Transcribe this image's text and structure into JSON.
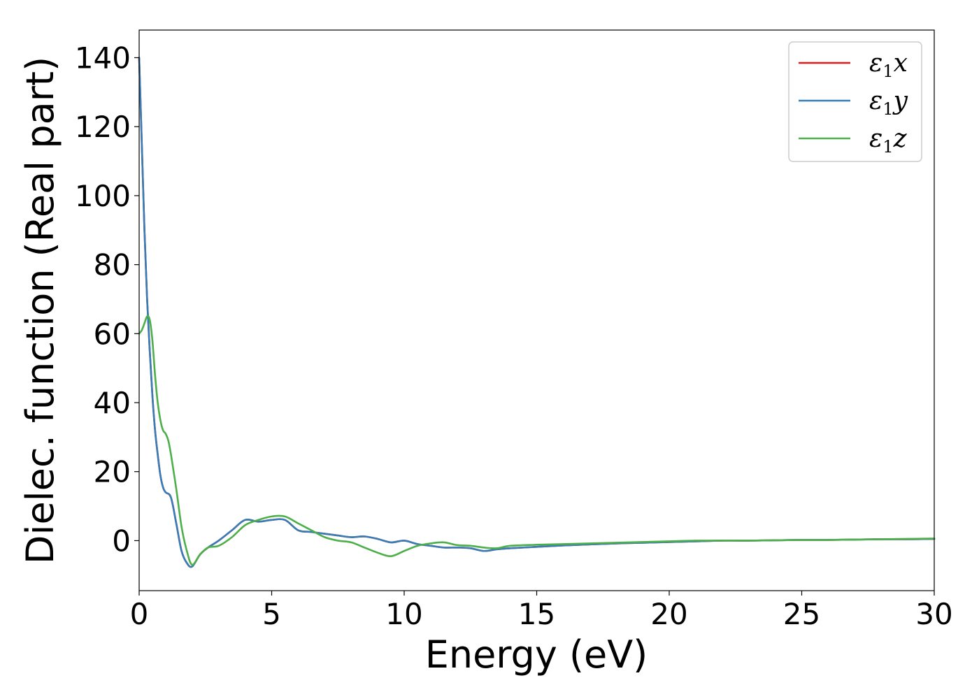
{
  "chart_data": {
    "type": "line",
    "xlabel": "Energy (eV)",
    "ylabel": "Dielec. function (Real part)",
    "xlim": [
      0,
      30
    ],
    "ylim": [
      -14.5,
      148
    ],
    "xticks": [
      "0",
      "5",
      "10",
      "15",
      "20",
      "25",
      "30"
    ],
    "yticks": [
      "0",
      "20",
      "40",
      "60",
      "80",
      "100",
      "120",
      "140"
    ],
    "grid": false,
    "legend_position": "top-right",
    "series": [
      {
        "name": "ε1x",
        "legend": {
          "base": "ε",
          "sub": "1",
          "suffix": "x"
        },
        "color": "#e41a1c",
        "x": [
          0,
          0.1,
          0.2,
          0.3,
          0.4,
          0.5,
          0.6,
          0.7,
          0.8,
          0.9,
          1.0,
          1.2,
          1.4,
          1.6,
          1.8,
          2.0,
          2.3,
          2.6,
          3.0,
          3.5,
          4.0,
          4.5,
          5.0,
          5.5,
          6.0,
          6.5,
          7.0,
          7.5,
          8.0,
          8.5,
          9.0,
          9.5,
          10.0,
          10.5,
          11.0,
          11.5,
          12.0,
          12.5,
          13.0,
          13.5,
          14.0,
          15.0,
          16.0,
          17.0,
          18.0,
          19.0,
          20.0,
          21.0,
          22.0,
          23.0,
          24.0,
          25.0,
          26.0,
          27.0,
          28.0,
          29.0,
          30.0
        ],
        "y": [
          140,
          115,
          90,
          70,
          55,
          42,
          32,
          25,
          19,
          15.5,
          14,
          12.5,
          5,
          -3,
          -6.5,
          -7.5,
          -4,
          -2,
          0,
          3,
          6,
          5.5,
          6,
          6,
          3,
          2.5,
          2,
          1.5,
          1,
          1.2,
          0.5,
          -0.5,
          0,
          -1,
          -1.5,
          -2,
          -2,
          -2.2,
          -3,
          -2.5,
          -2.2,
          -1.8,
          -1.4,
          -1.1,
          -0.8,
          -0.6,
          -0.4,
          -0.2,
          0,
          0,
          0.1,
          0.2,
          0.2,
          0.3,
          0.4,
          0.4,
          0.5
        ]
      },
      {
        "name": "ε1y",
        "legend": {
          "base": "ε",
          "sub": "1",
          "suffix": "y"
        },
        "color": "#377eb8",
        "x": [
          0,
          0.1,
          0.2,
          0.3,
          0.4,
          0.5,
          0.6,
          0.7,
          0.8,
          0.9,
          1.0,
          1.2,
          1.4,
          1.6,
          1.8,
          2.0,
          2.3,
          2.6,
          3.0,
          3.5,
          4.0,
          4.5,
          5.0,
          5.5,
          6.0,
          6.5,
          7.0,
          7.5,
          8.0,
          8.5,
          9.0,
          9.5,
          10.0,
          10.5,
          11.0,
          11.5,
          12.0,
          12.5,
          13.0,
          13.5,
          14.0,
          15.0,
          16.0,
          17.0,
          18.0,
          19.0,
          20.0,
          21.0,
          22.0,
          23.0,
          24.0,
          25.0,
          26.0,
          27.0,
          28.0,
          29.0,
          30.0
        ],
        "y": [
          140,
          115,
          90,
          70,
          55,
          42,
          32,
          25,
          19,
          15.5,
          14,
          12.5,
          5,
          -3,
          -6.5,
          -7.5,
          -4,
          -2,
          0,
          3,
          6,
          5.5,
          6,
          6,
          3,
          2.5,
          2,
          1.5,
          1,
          1.2,
          0.5,
          -0.5,
          0,
          -1,
          -1.5,
          -2,
          -2,
          -2.2,
          -3,
          -2.5,
          -2.2,
          -1.8,
          -1.4,
          -1.1,
          -0.8,
          -0.6,
          -0.4,
          -0.2,
          0,
          0,
          0.1,
          0.2,
          0.2,
          0.3,
          0.4,
          0.4,
          0.5
        ]
      },
      {
        "name": "ε1z",
        "legend": {
          "base": "ε",
          "sub": "1",
          "suffix": "z"
        },
        "color": "#4daf4a",
        "x": [
          0,
          0.1,
          0.2,
          0.3,
          0.4,
          0.5,
          0.6,
          0.7,
          0.8,
          0.9,
          1.0,
          1.1,
          1.2,
          1.4,
          1.6,
          1.8,
          2.0,
          2.3,
          2.6,
          3.0,
          3.5,
          4.0,
          4.5,
          5.0,
          5.5,
          6.0,
          6.5,
          7.0,
          7.5,
          8.0,
          8.5,
          9.0,
          9.5,
          10.0,
          10.5,
          11.0,
          11.5,
          12.0,
          12.5,
          13.0,
          13.5,
          14.0,
          15.0,
          16.0,
          17.0,
          18.0,
          19.0,
          20.0,
          21.0,
          22.0,
          23.0,
          24.0,
          25.0,
          26.0,
          27.0,
          28.0,
          29.0,
          30.0
        ],
        "y": [
          60,
          61,
          63,
          65,
          64,
          58,
          48,
          40,
          35,
          32,
          31,
          29,
          25,
          15,
          4,
          -3,
          -7,
          -4,
          -2,
          -1.5,
          1,
          4.5,
          6,
          7,
          7,
          5,
          3,
          1,
          0,
          -0.5,
          -2,
          -3.5,
          -4.5,
          -3,
          -1.5,
          -0.8,
          -0.5,
          -1.3,
          -1.5,
          -2,
          -2.2,
          -1.5,
          -1.2,
          -1,
          -0.8,
          -0.6,
          -0.4,
          -0.2,
          0,
          0,
          0,
          0.1,
          0.2,
          0.2,
          0.3,
          0.4,
          0.5,
          0.6
        ]
      }
    ]
  }
}
